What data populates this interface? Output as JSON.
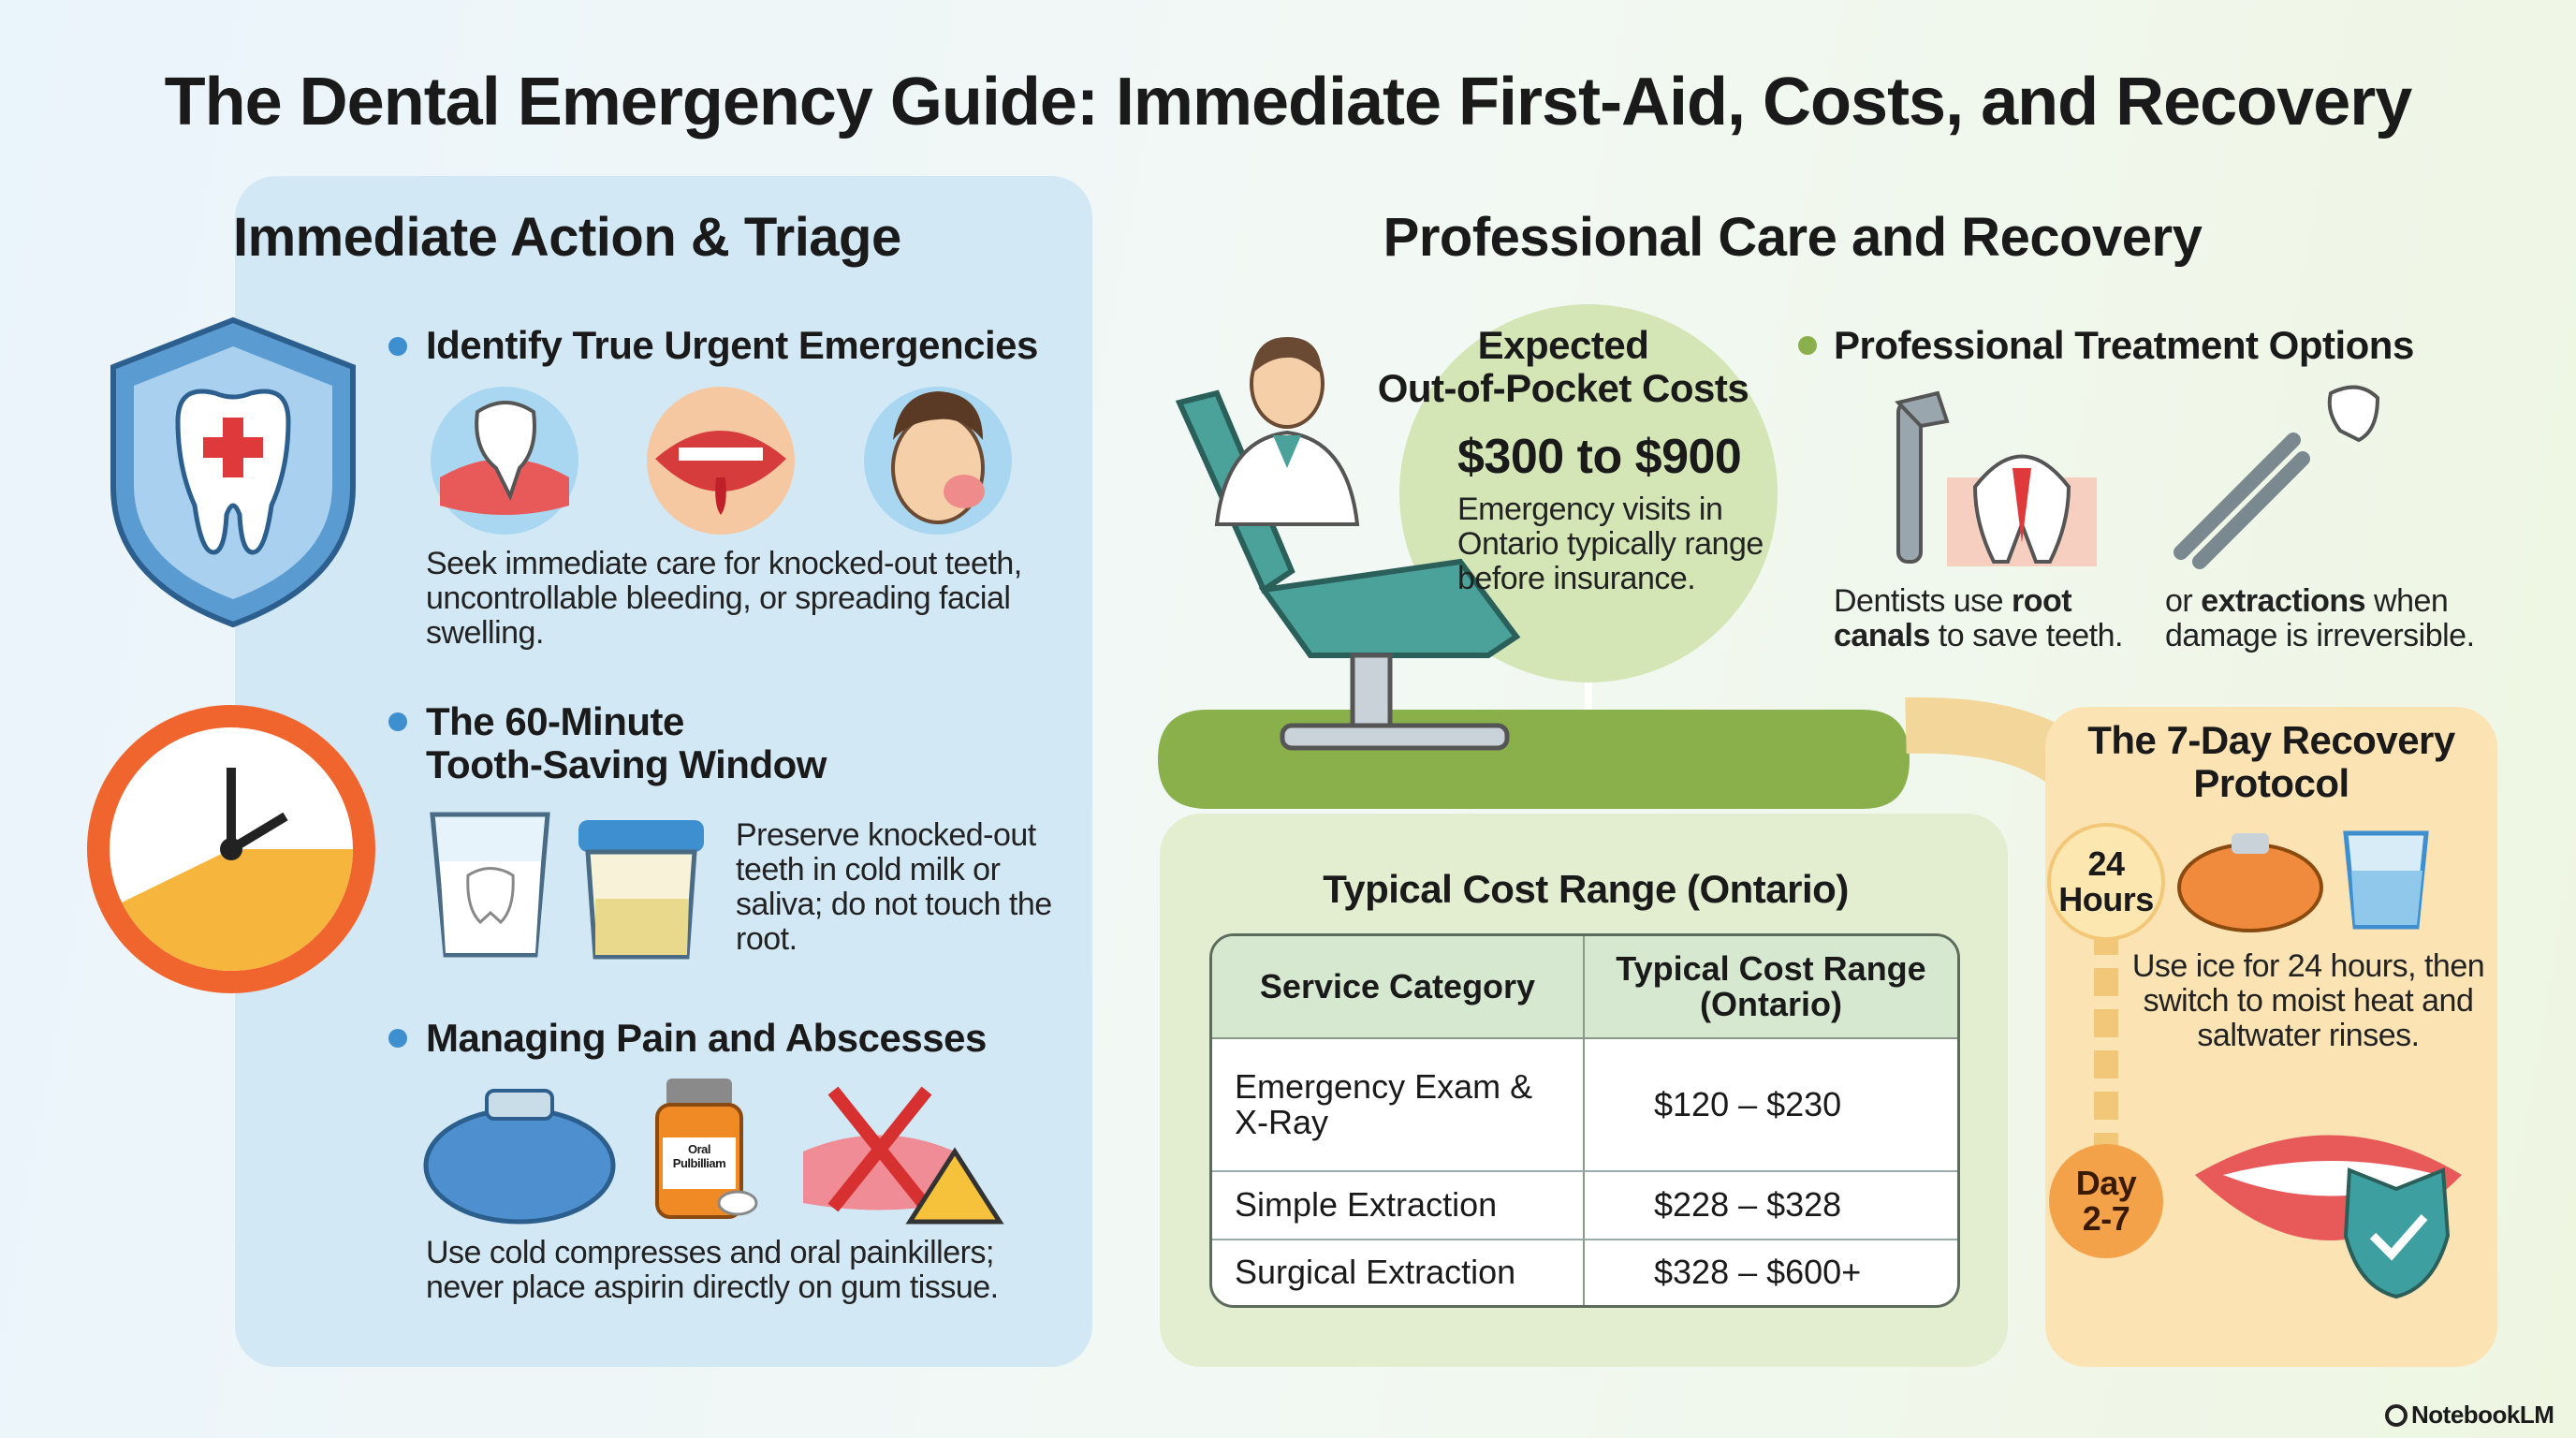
{
  "header": {
    "title": "The Dental Emergency Guide: Immediate First-Aid, Costs, and Recovery"
  },
  "left": {
    "heading": "Immediate Action & Triage",
    "sections": [
      {
        "heading": [
          "Identify True Urgent Emergencies"
        ],
        "body": "Seek immediate care for knocked-out teeth, uncontrollable bleeding, or spreading facial swelling."
      },
      {
        "heading": [
          "The 60-Minute",
          "Tooth-Saving Window"
        ],
        "body": "Preserve knocked-out teeth in cold milk or saliva; do not touch the root."
      },
      {
        "heading": [
          "Managing Pain and Abscesses"
        ],
        "body": "Use cold compresses and oral painkillers; never place aspirin directly on gum tissue.",
        "bottle_label": [
          "Oral",
          "Pulbilliam"
        ]
      }
    ]
  },
  "right": {
    "heading": "Professional Care and Recovery",
    "costs": {
      "heading": [
        "Expected",
        "Out-of-Pocket Costs"
      ],
      "amount": "$300 to $900",
      "note": "Emergency visits in Ontario typically range before insurance."
    },
    "treatment": {
      "heading": "Professional Treatment Options",
      "items": [
        {
          "before": "Dentists use ",
          "bold": "root canals",
          "after": " to save teeth."
        },
        {
          "before": "or ",
          "bold": "extractions",
          "after": " when damage is irreversible."
        }
      ]
    },
    "table": {
      "title": "Typical Cost Range (Ontario)",
      "header": [
        "Service Category",
        "Typical Cost Range (Ontario)"
      ],
      "rows": [
        [
          "Emergency Exam & X-Ray",
          "$120 – $230"
        ],
        [
          "Simple Extraction",
          "$228 – $328"
        ],
        [
          "Surgical Extraction",
          "$328 – $600+"
        ]
      ]
    },
    "recovery": {
      "title": [
        "The 7-Day Recovery",
        "Protocol"
      ],
      "steps": [
        {
          "label": [
            "24",
            "Hours"
          ],
          "text": "Use ice for 24 hours, then switch to moist heat and saltwater rinses."
        },
        {
          "label": [
            "Day",
            "2-7"
          ]
        }
      ]
    }
  },
  "footer": {
    "brand": "NotebookLM"
  }
}
